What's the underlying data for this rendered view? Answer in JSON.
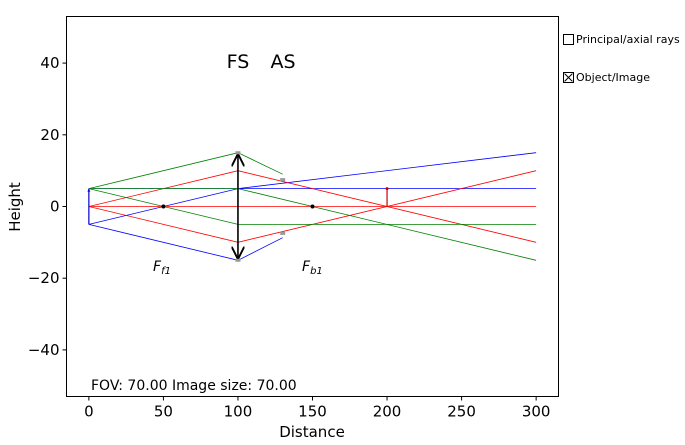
{
  "chart_data": {
    "type": "line",
    "xlabel": "Distance",
    "ylabel": "Height",
    "xlim": [
      -15,
      315
    ],
    "ylim": [
      -53,
      53
    ],
    "xticks": [
      0,
      50,
      100,
      150,
      200,
      250,
      300
    ],
    "yticks": [
      -40,
      -20,
      0,
      20,
      40
    ],
    "grid": false,
    "annotations": {
      "field_stop": "FS",
      "aperture_stop": "AS",
      "front_focus": "F",
      "front_focus_sub": "f1",
      "back_focus": "F",
      "back_focus_sub": "b1",
      "fov_text": "FOV: 70.00 Image size: 70.00"
    },
    "lens": {
      "x": 100,
      "half_height": 15,
      "color": "#000000"
    },
    "focal_points": [
      {
        "x": 50,
        "y": 0
      },
      {
        "x": 150,
        "y": 0
      }
    ],
    "object": {
      "x": 0,
      "y_from": -5,
      "y_to": 5,
      "color": "#0000cc"
    },
    "image": {
      "x": 200,
      "y_from": 0,
      "y_to": 5,
      "color": "#cc0000"
    },
    "series": [
      {
        "color": "#0000ff",
        "points": [
          [
            0,
            5
          ],
          [
            100,
            5
          ],
          [
            300,
            5
          ]
        ]
      },
      {
        "color": "#0000ff",
        "points": [
          [
            0,
            -5
          ],
          [
            100,
            5
          ],
          [
            300,
            15
          ]
        ]
      },
      {
        "color": "#0000ff",
        "points": [
          [
            0,
            -5
          ],
          [
            100,
            -15
          ],
          [
            130,
            -8.7
          ]
        ]
      },
      {
        "color": "#ff0000",
        "points": [
          [
            0,
            0
          ],
          [
            300,
            0
          ]
        ]
      },
      {
        "color": "#ff0000",
        "points": [
          [
            0,
            0
          ],
          [
            100,
            10
          ],
          [
            300,
            -10
          ]
        ]
      },
      {
        "color": "#ff0000",
        "points": [
          [
            0,
            0
          ],
          [
            100,
            -10
          ],
          [
            300,
            10
          ]
        ]
      },
      {
        "color": "#008000",
        "points": [
          [
            0,
            5
          ],
          [
            100,
            -5
          ],
          [
            300,
            -5
          ]
        ]
      },
      {
        "color": "#008000",
        "points": [
          [
            0,
            5
          ],
          [
            100,
            15
          ],
          [
            130,
            9
          ]
        ]
      },
      {
        "color": "#008000",
        "points": [
          [
            0,
            5
          ],
          [
            100,
            5
          ],
          [
            300,
            -15
          ]
        ]
      }
    ],
    "stop_markers": [
      {
        "x": 100,
        "y": 15
      },
      {
        "x": 100,
        "y": -15
      },
      {
        "x": 130,
        "y": 7.5
      },
      {
        "x": 130,
        "y": -7.5
      }
    ]
  },
  "controls": {
    "principal_rays": {
      "label": "Principal/axial rays",
      "checked": false
    },
    "object_image": {
      "label": "Object/Image",
      "checked": true
    }
  }
}
